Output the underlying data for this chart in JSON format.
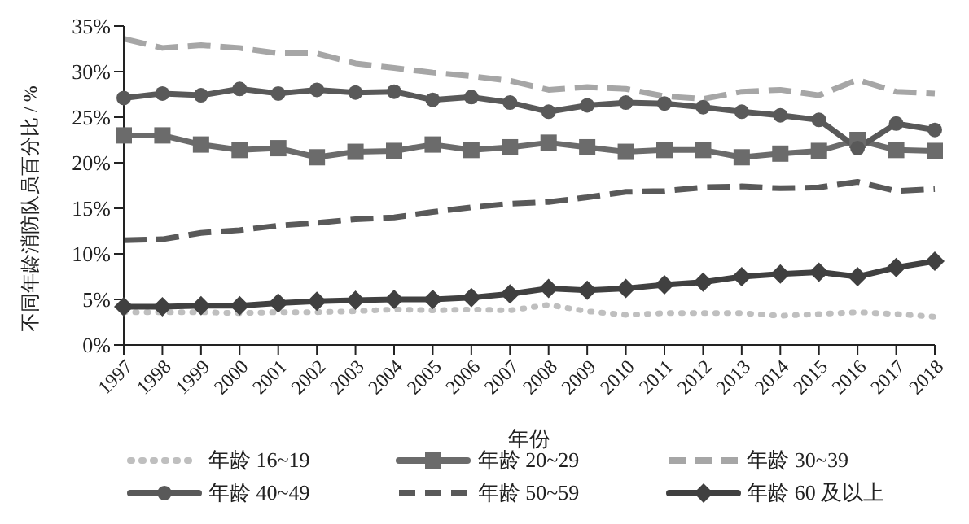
{
  "chart_data": {
    "type": "line",
    "xlabel": "年份",
    "ylabel": "不同年龄消防队员百分比 / %",
    "categories": [
      "1997",
      "1998",
      "1999",
      "2000",
      "2001",
      "2002",
      "2003",
      "2004",
      "2005",
      "2006",
      "2007",
      "2008",
      "2009",
      "2010",
      "2011",
      "2012",
      "2013",
      "2014",
      "2015",
      "2016",
      "2017",
      "2018"
    ],
    "ylim": [
      0,
      35
    ],
    "yticks": [
      {
        "value": 0,
        "label": "0%"
      },
      {
        "value": 5,
        "label": "5%"
      },
      {
        "value": 10,
        "label": "10%"
      },
      {
        "value": 15,
        "label": "15%"
      },
      {
        "value": 20,
        "label": "20%"
      },
      {
        "value": 25,
        "label": "25%"
      },
      {
        "value": 30,
        "label": "30%"
      },
      {
        "value": 35,
        "label": "35%"
      }
    ],
    "grid": false,
    "legend": "bottom",
    "series": [
      {
        "name": "年龄 16~19",
        "color": "#bfbfbf",
        "marker": "none",
        "line_style": "dotted",
        "values": [
          3.6,
          3.6,
          3.6,
          3.5,
          3.6,
          3.6,
          3.7,
          3.9,
          3.8,
          3.9,
          3.8,
          4.4,
          3.7,
          3.3,
          3.5,
          3.5,
          3.5,
          3.2,
          3.4,
          3.6,
          3.4,
          3.1
        ]
      },
      {
        "name": "年龄 20~29",
        "color": "#6b6b6b",
        "marker": "square",
        "line_style": "solid",
        "values": [
          23.0,
          23.0,
          22.0,
          21.4,
          21.6,
          20.6,
          21.2,
          21.3,
          22.0,
          21.4,
          21.7,
          22.2,
          21.7,
          21.2,
          21.4,
          21.4,
          20.6,
          21.0,
          21.3,
          22.5,
          21.4,
          21.3
        ]
      },
      {
        "name": "年龄 30~39",
        "color": "#a6a6a6",
        "marker": "none",
        "line_style": "dashed",
        "values": [
          33.6,
          32.6,
          32.9,
          32.6,
          32.0,
          32.0,
          30.9,
          30.4,
          29.9,
          29.5,
          29.0,
          28.0,
          28.3,
          28.1,
          27.3,
          27.0,
          27.8,
          28.0,
          27.4,
          29.1,
          27.8,
          27.6
        ]
      },
      {
        "name": "年龄 40~49",
        "color": "#595959",
        "marker": "circle",
        "line_style": "solid",
        "values": [
          27.1,
          27.6,
          27.4,
          28.1,
          27.6,
          28.0,
          27.7,
          27.8,
          26.9,
          27.2,
          26.6,
          25.6,
          26.3,
          26.6,
          26.5,
          26.1,
          25.6,
          25.2,
          24.7,
          21.6,
          24.3,
          23.6
        ]
      },
      {
        "name": "年龄 50~59",
        "color": "#595959",
        "marker": "none",
        "line_style": "dashed",
        "values": [
          11.5,
          11.6,
          12.3,
          12.6,
          13.1,
          13.4,
          13.8,
          14.0,
          14.6,
          15.1,
          15.5,
          15.7,
          16.2,
          16.8,
          16.9,
          17.3,
          17.4,
          17.2,
          17.3,
          17.9,
          16.9,
          17.1
        ]
      },
      {
        "name": "年龄 60 及以上",
        "color": "#404040",
        "marker": "diamond",
        "line_style": "solid",
        "values": [
          4.2,
          4.2,
          4.3,
          4.3,
          4.6,
          4.8,
          4.9,
          5.0,
          5.0,
          5.2,
          5.6,
          6.2,
          6.0,
          6.2,
          6.6,
          6.9,
          7.5,
          7.8,
          8.0,
          7.5,
          8.5,
          9.2
        ]
      }
    ]
  }
}
